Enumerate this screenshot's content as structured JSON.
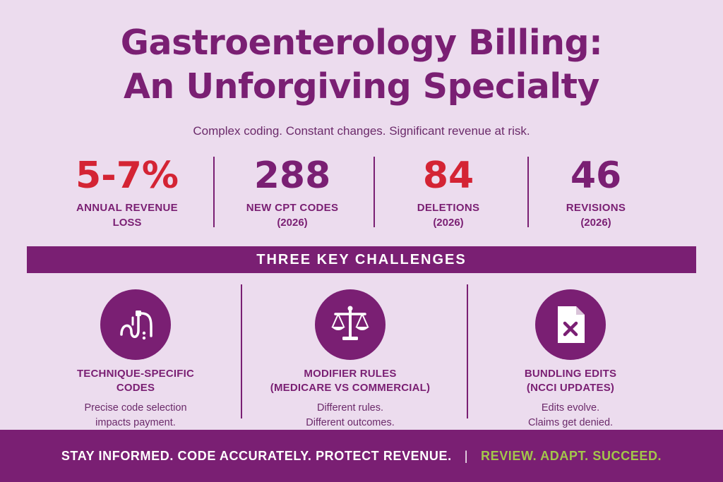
{
  "title": {
    "line1": "Gastroenterology Billing:",
    "line2": "An Unforgiving Specialty"
  },
  "subtitle": "Complex coding. Constant changes. Significant revenue at risk.",
  "stats": [
    {
      "value": "5-7%",
      "label": "ANNUAL REVENUE",
      "sub": "LOSS",
      "color": "#d42434"
    },
    {
      "value": "288",
      "label": "NEW CPT CODES",
      "sub": "(2026)",
      "color": "#7a1f73"
    },
    {
      "value": "84",
      "label": "DELETIONS",
      "sub": "(2026)",
      "color": "#d42434"
    },
    {
      "value": "46",
      "label": "REVISIONS",
      "sub": "(2026)",
      "color": "#7a1f73"
    }
  ],
  "band": "THREE KEY CHALLENGES",
  "challenges": [
    {
      "icon": "endoscope-icon",
      "title1": "TECHNIQUE-SPECIFIC",
      "title2": "CODES",
      "desc1": "Precise code selection",
      "desc2": "impacts payment."
    },
    {
      "icon": "scales-icon",
      "title1": "MODIFIER RULES",
      "title2": "(MEDICARE VS COMMERCIAL)",
      "desc1": "Different rules.",
      "desc2": "Different outcomes."
    },
    {
      "icon": "document-x-icon",
      "title1": "BUNDLING EDITS",
      "title2": "(NCCI UPDATES)",
      "desc1": "Edits evolve.",
      "desc2": "Claims get denied."
    }
  ],
  "footer": {
    "left": "STAY INFORMED. CODE ACCURATELY. PROTECT REVENUE.",
    "separator": "|",
    "right": "REVIEW. ADAPT. SUCCEED."
  },
  "colors": {
    "background": "#ecdcee",
    "brand_purple": "#7a1f73",
    "alert_red": "#d42434",
    "accent_green": "#a3c64a"
  }
}
